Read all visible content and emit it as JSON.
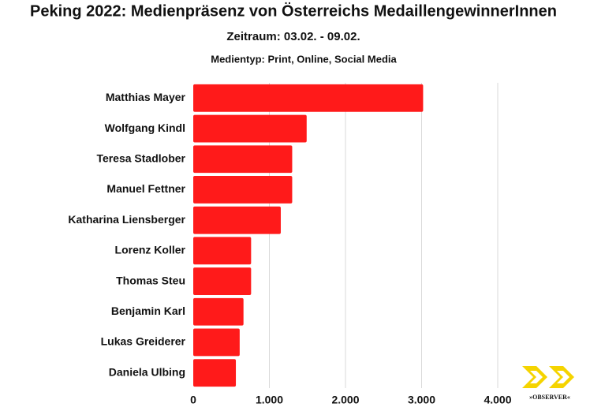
{
  "chart_data": {
    "type": "hbar",
    "title": "Peking 2022: Medienpräsenz von Österreichs MedaillengewinnerInnen",
    "subtitle": "Zeitraum: 03.02. - 09.02.",
    "subtitle2": "Medientyp: Print, Online, Social Media",
    "categories": [
      "Matthias Mayer",
      "Wolfgang Kindl",
      "Teresa Stadlober",
      "Manuel Fettner",
      "Katharina Liensberger",
      "Lorenz Koller",
      "Thomas Steu",
      "Benjamin Karl",
      "Lukas Greiderer",
      "Daniela Ulbing"
    ],
    "values": [
      3020,
      1490,
      1300,
      1300,
      1150,
      760,
      760,
      660,
      610,
      560
    ],
    "color": "#ff1a1a",
    "xlim": [
      0,
      4000
    ],
    "xticks": [
      0,
      {
        "value": 1000,
        "label": "1.000"
      },
      {
        "value": 2000,
        "label": "2.000"
      },
      {
        "value": 3000,
        "label": "3.000"
      },
      {
        "value": 4000,
        "label": "4.000"
      }
    ],
    "grid": true,
    "logo": "»OBSERVER«"
  }
}
